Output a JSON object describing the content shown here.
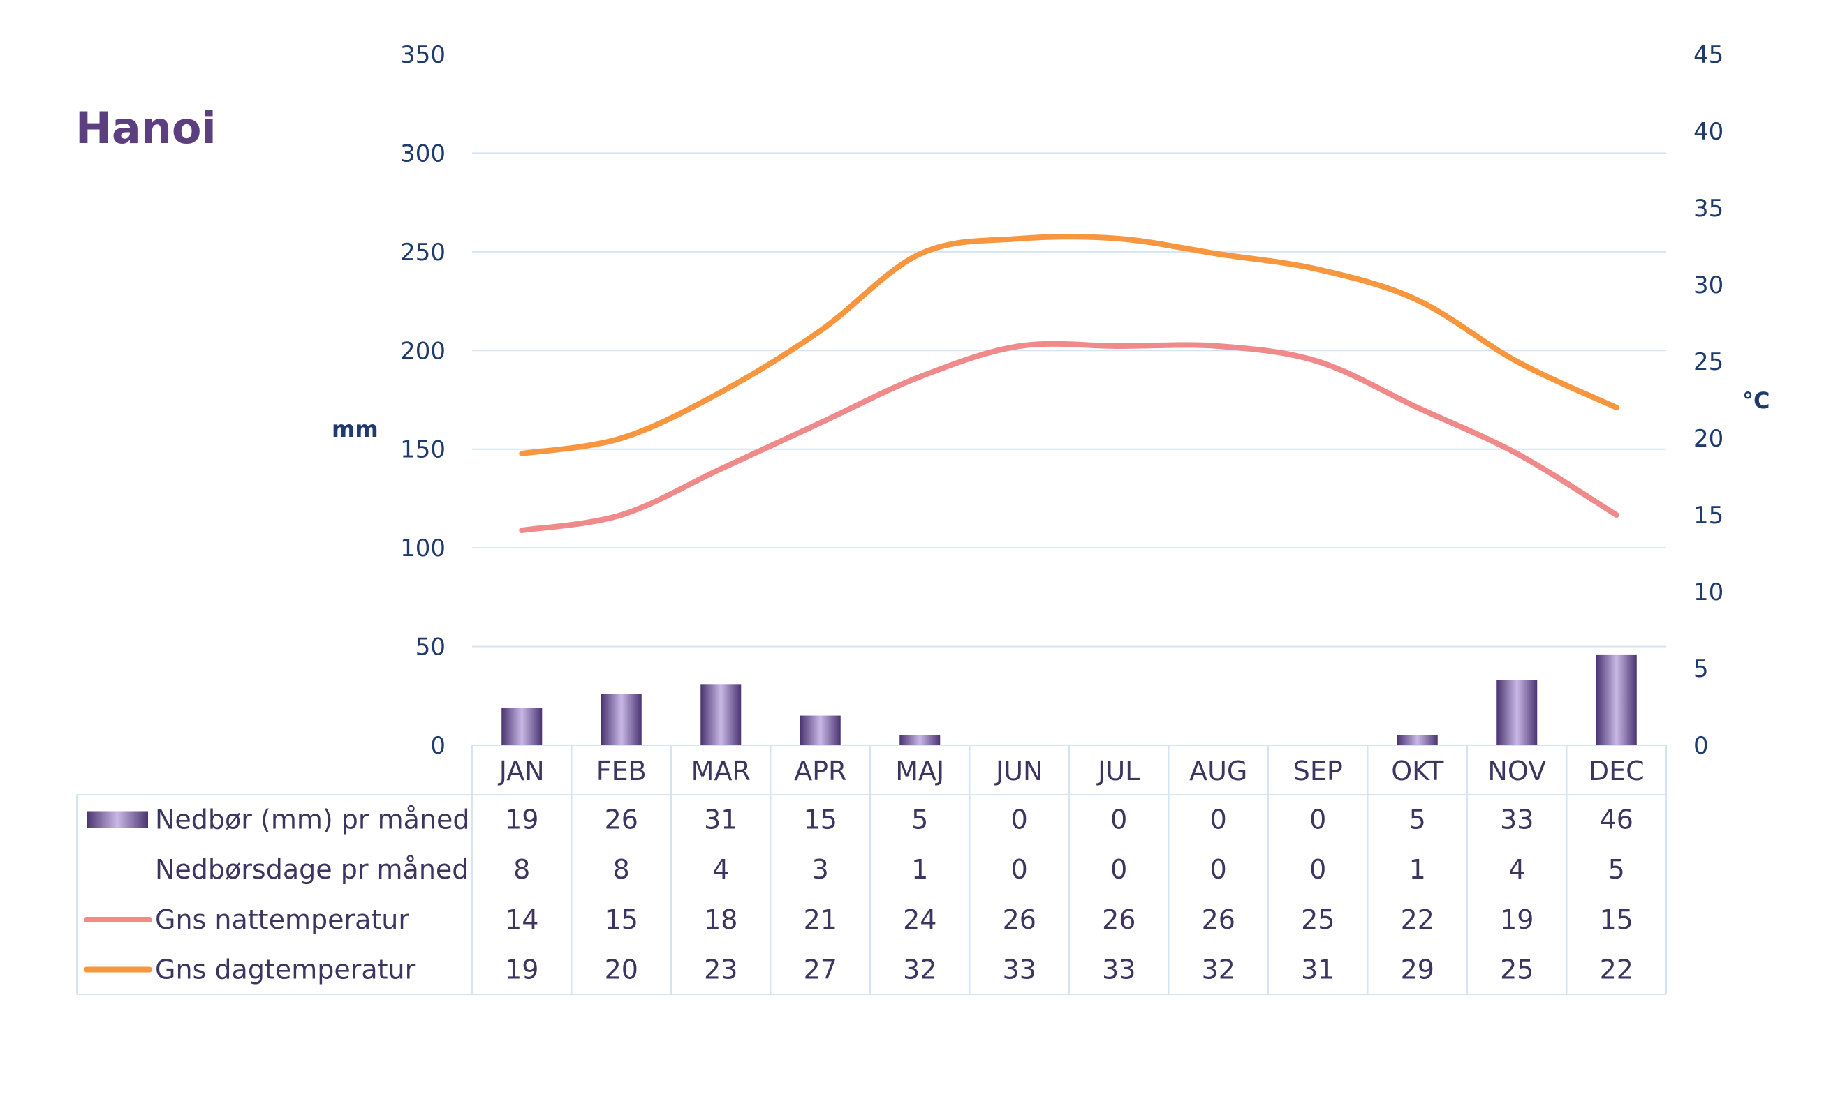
{
  "colors": {
    "title": "#5b3f7e",
    "axis_text": "#1f3b6e",
    "grid": "#d6e4f2",
    "table_text": "#3d3560",
    "precip_dark": "#4a3470",
    "precip_light": "#c9b8e6",
    "night": "#f08a8a",
    "day": "#f7963e"
  },
  "chart_data": {
    "type": "bar+line",
    "title": "Hanoi",
    "y_left_label": "mm",
    "y_right_label": "°C",
    "y_left_ticks": [
      "0",
      "50",
      "100",
      "150",
      "200",
      "250",
      "300",
      "350"
    ],
    "y_right_ticks": [
      "0",
      "5",
      "10",
      "15",
      "20",
      "25",
      "30",
      "35",
      "40",
      "45"
    ],
    "y_left_range": [
      0,
      350
    ],
    "y_right_range": [
      0,
      45
    ],
    "grid": "horizontal",
    "categories": [
      "JAN",
      "FEB",
      "MAR",
      "APR",
      "MAJ",
      "JUN",
      "JUL",
      "AUG",
      "SEP",
      "OKT",
      "NOV",
      "DEC"
    ],
    "series": [
      {
        "name": "Nedbør (mm) pr måned",
        "kind": "bar",
        "axis": "left",
        "legend_icon": "bar",
        "values": [
          19,
          26,
          31,
          15,
          5,
          0,
          0,
          0,
          0,
          5,
          33,
          46
        ]
      },
      {
        "name": "Nedbørsdage pr måned",
        "kind": "table",
        "axis": "none",
        "legend_icon": "none",
        "values": [
          8,
          8,
          4,
          3,
          1,
          0,
          0,
          0,
          0,
          1,
          4,
          5
        ]
      },
      {
        "name": "Gns nattemperatur",
        "kind": "line",
        "axis": "right",
        "legend_icon": "line",
        "color_key": "night",
        "values": [
          14,
          15,
          18,
          21,
          24,
          26,
          26,
          26,
          25,
          22,
          19,
          15
        ]
      },
      {
        "name": "Gns dagtemperatur",
        "kind": "line",
        "axis": "right",
        "legend_icon": "line",
        "color_key": "day",
        "values": [
          19,
          20,
          23,
          27,
          32,
          33,
          33,
          32,
          31,
          29,
          25,
          22
        ]
      }
    ]
  }
}
